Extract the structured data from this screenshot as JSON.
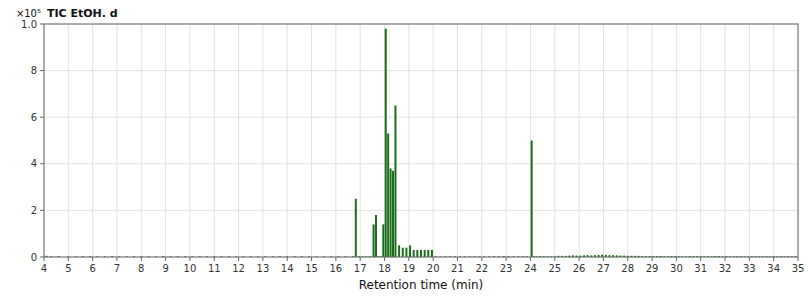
{
  "chart_data": {
    "type": "bar",
    "title": "TIC EtOH. d",
    "x_label": "Retention time (min)",
    "annotations": [
      "×10⁵"
    ],
    "color": "#1a6e1a",
    "grid": true,
    "xlim": [
      4.0,
      35.0
    ],
    "ylim": [
      0,
      1.0
    ],
    "xticks": [
      4,
      5,
      6,
      7,
      8,
      9,
      10,
      11,
      12,
      13,
      14,
      15,
      16,
      17,
      18,
      19,
      20,
      21,
      22,
      23,
      24,
      25,
      26,
      27,
      28,
      29,
      30,
      31,
      32,
      33,
      34,
      35
    ],
    "yticks": [
      0.0,
      {
        "value": 0.2,
        "label": "2"
      },
      {
        "value": 0.4,
        "label": "4"
      },
      {
        "value": 0.6,
        "label": "6"
      },
      {
        "value": 0.8,
        "label": "8"
      },
      {
        "value": 1.0,
        "label": "1.0"
      }
    ],
    "x": [
      4.1,
      4.3,
      4.6,
      5.0,
      5.3,
      5.6,
      5.9,
      6.2,
      6.5,
      6.8,
      7.1,
      7.4,
      7.7,
      8.0,
      8.3,
      8.6,
      8.9,
      9.2,
      9.5,
      9.8,
      10.1,
      10.4,
      10.7,
      11.0,
      11.3,
      11.6,
      11.9,
      12.2,
      12.5,
      12.8,
      13.1,
      13.4,
      13.7,
      14.0,
      14.3,
      14.6,
      14.9,
      15.2,
      15.5,
      15.8,
      16.1,
      16.4,
      16.7,
      16.82,
      16.95,
      17.1,
      17.25,
      17.4,
      17.55,
      17.65,
      17.75,
      17.85,
      17.95,
      18.05,
      18.15,
      18.25,
      18.35,
      18.45,
      18.6,
      18.75,
      18.9,
      19.05,
      19.2,
      19.35,
      19.5,
      19.65,
      19.8,
      19.95,
      20.1,
      20.3,
      20.5,
      20.7,
      20.9,
      21.1,
      21.3,
      21.5,
      21.7,
      21.9,
      22.1,
      22.3,
      22.5,
      22.7,
      22.9,
      23.1,
      23.3,
      23.5,
      23.7,
      23.85,
      24.05,
      24.15,
      24.25,
      24.4,
      24.55,
      24.7,
      24.85,
      25.0,
      25.15,
      25.3,
      25.45,
      25.6,
      25.75,
      25.9,
      26.05,
      26.2,
      26.35,
      26.5,
      26.65,
      26.8,
      26.95,
      27.1,
      27.25,
      27.4,
      27.55,
      27.7,
      27.85,
      28.0,
      28.15,
      28.3,
      28.45,
      28.6,
      28.75,
      28.9,
      29.05,
      29.2,
      29.35,
      29.5,
      29.65,
      29.8,
      29.95,
      30.1,
      30.25,
      30.4,
      30.55,
      30.7,
      30.85,
      31.0,
      31.15,
      31.3,
      31.45,
      31.6,
      31.75,
      31.9,
      32.05,
      32.2,
      32.35,
      32.5,
      32.65,
      32.8,
      32.95,
      33.1,
      33.25,
      33.4,
      33.55,
      33.7,
      33.85,
      34.0,
      34.15,
      34.3,
      34.45,
      34.6,
      34.75,
      34.9
    ],
    "values": [
      0.005,
      0.003,
      0.004,
      0.003,
      0.003,
      0.003,
      0.004,
      0.003,
      0.003,
      0.004,
      0.003,
      0.003,
      0.003,
      0.003,
      0.003,
      0.003,
      0.004,
      0.003,
      0.003,
      0.003,
      0.003,
      0.003,
      0.003,
      0.003,
      0.003,
      0.003,
      0.003,
      0.003,
      0.003,
      0.003,
      0.003,
      0.003,
      0.003,
      0.003,
      0.003,
      0.003,
      0.003,
      0.003,
      0.003,
      0.003,
      0.003,
      0.003,
      0.003,
      0.25,
      0.003,
      0.003,
      0.003,
      0.003,
      0.14,
      0.18,
      0.003,
      0.003,
      0.14,
      0.98,
      0.53,
      0.38,
      0.37,
      0.65,
      0.05,
      0.04,
      0.04,
      0.05,
      0.03,
      0.03,
      0.03,
      0.03,
      0.03,
      0.03,
      0.003,
      0.003,
      0.003,
      0.003,
      0.003,
      0.003,
      0.003,
      0.003,
      0.003,
      0.003,
      0.003,
      0.003,
      0.003,
      0.003,
      0.004,
      0.004,
      0.003,
      0.003,
      0.003,
      0.003,
      0.5,
      0.003,
      0.003,
      0.004,
      0.003,
      0.003,
      0.003,
      0.003,
      0.005,
      0.005,
      0.005,
      0.006,
      0.007,
      0.006,
      0.006,
      0.007,
      0.008,
      0.007,
      0.008,
      0.009,
      0.01,
      0.009,
      0.008,
      0.008,
      0.007,
      0.006,
      0.006,
      0.005,
      0.005,
      0.005,
      0.005,
      0.004,
      0.004,
      0.004,
      0.004,
      0.004,
      0.004,
      0.003,
      0.003,
      0.004,
      0.004,
      0.003,
      0.003,
      0.003,
      0.004,
      0.004,
      0.004,
      0.003,
      0.003,
      0.003,
      0.003,
      0.004,
      0.004,
      0.003,
      0.004,
      0.003,
      0.003,
      0.003,
      0.003,
      0.003,
      0.003,
      0.003,
      0.003,
      0.003,
      0.003,
      0.003,
      0.003,
      0.003,
      0.003,
      0.003,
      0.003,
      0.003,
      0.003,
      0.003
    ]
  }
}
